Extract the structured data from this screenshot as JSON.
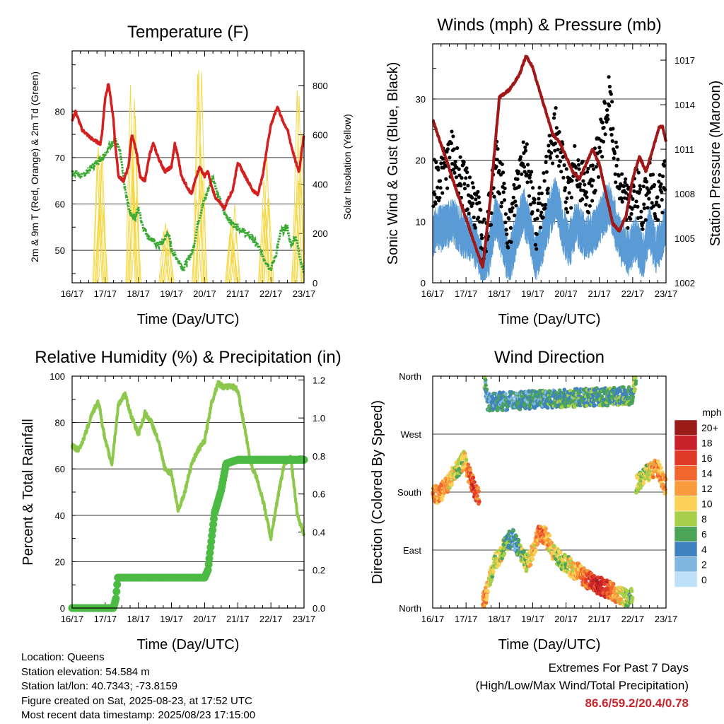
{
  "info": {
    "location": "Location: Queens",
    "elevation": "Station elevation: 54.584 m",
    "latlon": "Station lat/lon: 40.7343; -73.8159",
    "created": "Figure created on Sat, 2025-08-23, at 17:52 UTC",
    "recent": "Most recent data timestamp: 2025/08/23 17:15:00"
  },
  "extremes": {
    "line1": "Extremes For Past 7 Days",
    "line2": "(High/Low/Max Wind/Total Precipitation)",
    "values": "86.6/59.2/20.4/0.78"
  },
  "colors": {
    "temp": "#d42020",
    "dewpoint": "#3aaa35",
    "solar": "#f5d63c",
    "wind": "#5b9bd5",
    "gust": "#000000",
    "pressure": "#a01818",
    "rh": "#8cc84b",
    "precip": "#4cbb44"
  },
  "chart_data": [
    {
      "id": "temperature",
      "type": "line",
      "title": "Temperature (F)",
      "xlabel": "Time (Day/UTC)",
      "ylabel": "2m & 9m T (Red, Orange) & 2m Td (Green)",
      "ylabel_right": "Solar Insolation (Yellow)",
      "x_ticks": [
        "16/17",
        "17/17",
        "18/17",
        "19/17",
        "20/17",
        "21/17",
        "22/17",
        "23/17"
      ],
      "ylim": [
        43,
        93
      ],
      "y_ticks": [
        50,
        60,
        70,
        80
      ],
      "ylim_right": [
        0,
        940
      ],
      "y_ticks_right": [
        0,
        200,
        400,
        600,
        800
      ],
      "grid": true,
      "series": [
        {
          "role": "temp",
          "x": [
            0,
            0.1,
            0.3,
            0.6,
            0.85,
            0.9,
            1.0,
            1.1,
            1.25,
            1.3,
            1.4,
            1.55,
            1.7,
            1.8,
            1.95,
            2.05,
            2.2,
            2.35,
            2.45,
            2.6,
            2.8,
            3.0,
            3.1,
            3.2,
            3.3,
            3.45,
            3.6,
            3.75,
            3.85,
            4.0,
            4.1,
            4.2,
            4.35,
            4.5,
            4.6,
            4.7,
            4.85,
            5.0,
            5.15,
            5.3,
            5.45,
            5.6,
            5.75,
            5.9,
            6.0,
            6.2,
            6.35,
            6.5,
            6.6,
            6.75,
            6.85,
            7.0
          ],
          "y": [
            78,
            80,
            76,
            74,
            73,
            75,
            83,
            86,
            78,
            73,
            66,
            65,
            68,
            75,
            71,
            66,
            65,
            71,
            73,
            70,
            67,
            68,
            73,
            70,
            66,
            64,
            62,
            66,
            68,
            66,
            67,
            64,
            61,
            60,
            59,
            61,
            63,
            69,
            67,
            65,
            63,
            62,
            66,
            73,
            77,
            81,
            78,
            76,
            73,
            69,
            67,
            75
          ]
        },
        {
          "role": "dewpoint",
          "x": [
            0,
            0.3,
            0.6,
            0.9,
            1.1,
            1.2,
            1.3,
            1.45,
            1.6,
            1.75,
            1.9,
            2.0,
            2.15,
            2.3,
            2.45,
            2.6,
            2.75,
            2.9,
            3.0,
            3.2,
            3.35,
            3.5,
            3.65,
            3.8,
            3.95,
            4.1,
            4.25,
            4.4,
            4.6,
            4.8,
            5.0,
            5.2,
            5.4,
            5.6,
            5.75,
            5.9,
            6.0,
            6.15,
            6.3,
            6.5,
            6.6,
            6.75,
            6.9,
            7.0
          ],
          "y": [
            67,
            66,
            68,
            70,
            72,
            73,
            74,
            71,
            63,
            58,
            57,
            59,
            55,
            53,
            52,
            51,
            52,
            54,
            50,
            48,
            46,
            48,
            50,
            56,
            60,
            63,
            66,
            62,
            58,
            56,
            55,
            54,
            53,
            51,
            49,
            47,
            46,
            49,
            54,
            55,
            51,
            53,
            48,
            45
          ]
        },
        {
          "role": "solar",
          "note": "daily insolation spikes peaking near local midday",
          "peaks_x": [
            0.85,
            1.85,
            2.85,
            3.85,
            4.85,
            5.85,
            6.85
          ],
          "peaks_y": [
            770,
            870,
            310,
            880,
            320,
            590,
            820
          ]
        }
      ]
    },
    {
      "id": "winds",
      "type": "line",
      "title": "Winds (mph) & Pressure (mb)",
      "xlabel": "Time (Day/UTC)",
      "ylabel": "Sonic Wind & Gust (Blue, Black)",
      "ylabel_right": "Station Pressure (Maroon)",
      "x_ticks": [
        "16/17",
        "17/17",
        "18/17",
        "19/17",
        "20/17",
        "21/17",
        "22/17",
        "23/17"
      ],
      "ylim": [
        0,
        39
      ],
      "y_ticks": [
        0,
        10,
        20,
        30
      ],
      "ylim_right": [
        1002,
        1018.1
      ],
      "y_ticks_right": [
        1002,
        1005,
        1008,
        1011,
        1014,
        1017
      ],
      "grid": true,
      "series": [
        {
          "role": "wind",
          "x": [
            0,
            0.3,
            0.6,
            0.9,
            1.2,
            1.4,
            1.5,
            1.7,
            1.9,
            2.1,
            2.3,
            2.5,
            2.7,
            2.9,
            3.1,
            3.3,
            3.5,
            3.7,
            3.9,
            4.1,
            4.3,
            4.5,
            4.7,
            4.9,
            5.1,
            5.3,
            5.5,
            5.7,
            5.9,
            6.1,
            6.3,
            6.5,
            6.7,
            6.9,
            7.0
          ],
          "y": [
            9,
            10,
            11,
            9,
            8,
            6,
            3,
            6,
            12,
            8,
            4,
            9,
            13,
            10,
            5,
            8,
            12,
            15,
            10,
            7,
            11,
            9,
            8,
            10,
            12,
            14,
            10,
            7,
            6,
            8,
            5,
            10,
            6,
            9,
            11
          ]
        },
        {
          "role": "gust",
          "x": [
            0,
            0.3,
            0.6,
            0.9,
            1.2,
            1.4,
            1.5,
            1.7,
            1.9,
            2.1,
            2.3,
            2.5,
            2.7,
            2.9,
            3.1,
            3.3,
            3.5,
            3.7,
            3.9,
            4.1,
            4.3,
            4.5,
            4.7,
            4.9,
            5.1,
            5.3,
            5.5,
            5.7,
            5.9,
            6.1,
            6.3,
            6.5,
            6.7,
            6.9,
            7.0
          ],
          "y": [
            16,
            18,
            21,
            16,
            14,
            10,
            6,
            11,
            20,
            15,
            8,
            15,
            22,
            18,
            9,
            14,
            20,
            25,
            19,
            13,
            20,
            16,
            15,
            19,
            25,
            30,
            19,
            14,
            12,
            16,
            11,
            18,
            12,
            15,
            18
          ]
        },
        {
          "role": "pressure",
          "x": [
            0,
            0.3,
            0.6,
            0.9,
            1.2,
            1.5,
            1.7,
            1.9,
            2.0,
            2.3,
            2.6,
            2.8,
            3.0,
            3.2,
            3.4,
            3.6,
            3.8,
            4.0,
            4.2,
            4.4,
            4.6,
            4.8,
            5.0,
            5.2,
            5.4,
            5.6,
            5.8,
            6.0,
            6.2,
            6.4,
            6.6,
            6.8,
            6.9,
            7.0
          ],
          "y": [
            1013,
            1011,
            1009,
            1007,
            1005,
            1003,
            1007,
            1012,
            1014.5,
            1015,
            1016,
            1017.3,
            1016.5,
            1015,
            1013.5,
            1012,
            1011.5,
            1010.5,
            1009.5,
            1009,
            1010,
            1011,
            1010,
            1008,
            1006,
            1005.5,
            1006.5,
            1009,
            1010.5,
            1009.5,
            1011,
            1012.5,
            1012.5,
            1011.5
          ]
        }
      ]
    },
    {
      "id": "humidity",
      "type": "line",
      "title": "Relative Humidity (%) & Precipitation (in)",
      "xlabel": "Time (Day/UTC)",
      "ylabel": "Percent & Total Rainfall",
      "x_ticks": [
        "16/17",
        "17/17",
        "18/17",
        "19/17",
        "20/17",
        "21/17",
        "22/17",
        "23/17"
      ],
      "ylim": [
        0,
        100
      ],
      "y_ticks": [
        0,
        20,
        40,
        60,
        80,
        100
      ],
      "ylim_right": [
        0,
        1.22
      ],
      "y_ticks_right": [
        "0.0",
        "0.2",
        "0.4",
        "0.6",
        "0.8",
        "1.0",
        "1.2"
      ],
      "grid": true,
      "series": [
        {
          "role": "rh",
          "x": [
            0,
            0.2,
            0.4,
            0.6,
            0.8,
            1.0,
            1.2,
            1.4,
            1.6,
            1.8,
            2.0,
            2.2,
            2.4,
            2.6,
            2.8,
            3.0,
            3.2,
            3.4,
            3.6,
            3.8,
            4.0,
            4.2,
            4.4,
            4.6,
            4.8,
            5.0,
            5.2,
            5.4,
            5.6,
            5.8,
            6.0,
            6.2,
            6.4,
            6.6,
            6.8,
            7.0
          ],
          "y": [
            70,
            68,
            75,
            84,
            89,
            72,
            62,
            88,
            92,
            82,
            75,
            84,
            80,
            72,
            60,
            58,
            42,
            50,
            62,
            68,
            72,
            88,
            97,
            95,
            96,
            94,
            78,
            62,
            55,
            44,
            30,
            47,
            62,
            65,
            40,
            32
          ]
        },
        {
          "role": "precip",
          "x": [
            0,
            1.25,
            1.32,
            1.38,
            1.5,
            2.0,
            3.0,
            4.0,
            4.1,
            4.2,
            4.3,
            4.5,
            4.65,
            5.0,
            6.0,
            7.0
          ],
          "y": [
            0,
            0,
            0.05,
            0.16,
            0.16,
            0.16,
            0.16,
            0.16,
            0.2,
            0.35,
            0.5,
            0.62,
            0.76,
            0.78,
            0.78,
            0.78
          ]
        }
      ]
    },
    {
      "id": "direction",
      "type": "scatter",
      "title": "Wind Direction",
      "xlabel": "Time (Day/UTC)",
      "ylabel": "Direction (Colored By Speed)",
      "x_ticks": [
        "16/17",
        "17/17",
        "18/17",
        "19/17",
        "20/17",
        "21/17",
        "22/17",
        "23/17"
      ],
      "y_ticks": [
        "North",
        "East",
        "South",
        "West",
        "North"
      ],
      "ylim": [
        0,
        360
      ],
      "grid": true,
      "legend": {
        "title": "mph",
        "labels": [
          "20+",
          "18",
          "16",
          "14",
          "12",
          "10",
          "8",
          "6",
          "4",
          "2",
          "0"
        ],
        "colors": [
          "#9b1b1b",
          "#c8212a",
          "#e03a2b",
          "#f0662c",
          "#f89b3d",
          "#fbd157",
          "#a8cf49",
          "#4ba457",
          "#3f82bf",
          "#7fb7e1",
          "#bfe1f7"
        ],
        "placement": "right"
      },
      "segments": [
        {
          "x": [
            0,
            0.2,
            0.4,
            0.6,
            0.8,
            0.95,
            1.1,
            1.25,
            1.4
          ],
          "dir": [
            180,
            175,
            190,
            205,
            220,
            230,
            205,
            185,
            170
          ],
          "speed": [
            12,
            13,
            12,
            10,
            8,
            9,
            14,
            16,
            14
          ]
        },
        {
          "x": [
            1.5,
            1.6,
            1.7,
            1.8,
            1.9,
            2.0,
            2.2,
            2.4,
            2.6,
            2.8,
            3.0,
            3.2,
            3.4,
            3.6,
            3.8,
            4.0,
            4.2,
            4.4,
            4.6,
            4.8,
            5.0,
            5.2,
            5.4,
            5.6,
            5.8,
            6.0
          ],
          "dir": [
            10,
            20,
            40,
            60,
            75,
            80,
            100,
            110,
            90,
            70,
            85,
            120,
            110,
            90,
            75,
            70,
            60,
            55,
            45,
            40,
            35,
            30,
            25,
            20,
            15,
            20
          ],
          "speed": [
            14,
            12,
            10,
            8,
            8,
            10,
            6,
            4,
            6,
            8,
            10,
            14,
            12,
            10,
            8,
            8,
            10,
            12,
            14,
            16,
            18,
            16,
            12,
            10,
            8,
            6
          ]
        },
        {
          "x": [
            6.1,
            6.3,
            6.5,
            6.7,
            6.9,
            7.0
          ],
          "dir": [
            190,
            205,
            210,
            220,
            200,
            185
          ],
          "speed": [
            8,
            8,
            10,
            12,
            12,
            12
          ]
        },
        {
          "x": [
            1.55,
            1.6,
            1.65,
            6.0,
            6.05,
            6.1
          ],
          "dir": [
            350,
            340,
            320,
            330,
            345,
            355
          ],
          "speed": [
            6,
            4,
            4,
            6,
            8,
            6
          ]
        }
      ]
    }
  ]
}
